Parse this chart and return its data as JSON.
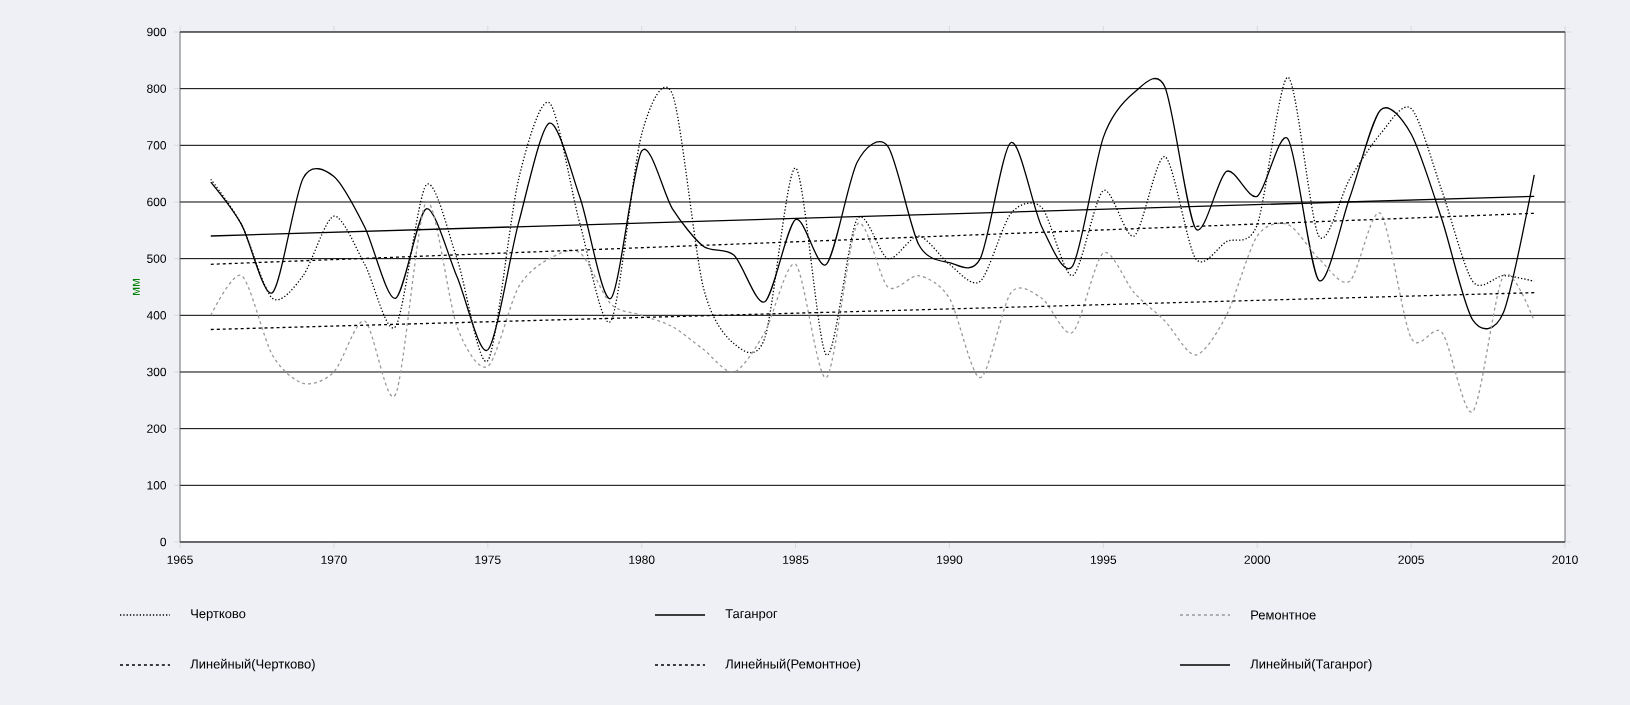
{
  "chart_data": {
    "type": "line",
    "ylabel": "мм",
    "xlim": [
      1965,
      2010
    ],
    "ylim": [
      0,
      900
    ],
    "xticks": [
      1965,
      1970,
      1975,
      1980,
      1985,
      1990,
      1995,
      2000,
      2005,
      2010
    ],
    "yticks": [
      0,
      100,
      200,
      300,
      400,
      500,
      600,
      700,
      800,
      900
    ],
    "grid": "y",
    "legend": "bottom",
    "x": [
      1966,
      1967,
      1968,
      1969,
      1970,
      1971,
      1972,
      1973,
      1974,
      1975,
      1976,
      1977,
      1978,
      1979,
      1980,
      1981,
      1982,
      1983,
      1984,
      1985,
      1986,
      1987,
      1988,
      1989,
      1990,
      1991,
      1992,
      1993,
      1994,
      1995,
      1996,
      1997,
      1998,
      1999,
      2000,
      2001,
      2002,
      2003,
      2004,
      2005,
      2006,
      2007,
      2008,
      2009
    ],
    "series": [
      {
        "name": "Чертково",
        "color": "#000000",
        "line_style": "dotted",
        "values": [
          640,
          560,
          430,
          470,
          575,
          490,
          380,
          630,
          500,
          320,
          640,
          775,
          560,
          390,
          720,
          790,
          450,
          350,
          360,
          660,
          330,
          570,
          500,
          540,
          490,
          460,
          580,
          590,
          470,
          620,
          540,
          680,
          500,
          530,
          560,
          820,
          540,
          640,
          720,
          765,
          620,
          460,
          470,
          460
        ]
      },
      {
        "name": "Таганрог",
        "color": "#000000",
        "line_style": "solid",
        "values": [
          635,
          560,
          440,
          642,
          645,
          556,
          430,
          588,
          468,
          339,
          563,
          739,
          607,
          430,
          690,
          588,
          522,
          506,
          424,
          569,
          490,
          670,
          698,
          525,
          493,
          500,
          705,
          556,
          487,
          714,
          793,
          803,
          553,
          654,
          610,
          711,
          462,
          607,
          762,
          720,
          569,
          392,
          405,
          648
        ]
      },
      {
        "name": "Ремонтное",
        "color": "#999999",
        "line_style": "dashed",
        "values": [
          400,
          470,
          330,
          280,
          300,
          390,
          260,
          600,
          380,
          310,
          450,
          500,
          510,
          420,
          400,
          380,
          340,
          300,
          370,
          490,
          290,
          560,
          450,
          470,
          430,
          290,
          440,
          430,
          370,
          510,
          440,
          390,
          330,
          400,
          540,
          560,
          500,
          460,
          580,
          360,
          370,
          230,
          470,
          390
        ]
      },
      {
        "name": "Линейный(Чертково)",
        "color": "#000000",
        "line_style": "dashed",
        "values": [
          490,
          null,
          null,
          null,
          null,
          null,
          null,
          null,
          null,
          null,
          null,
          null,
          null,
          null,
          null,
          null,
          null,
          null,
          null,
          null,
          null,
          null,
          null,
          null,
          null,
          null,
          null,
          null,
          null,
          null,
          null,
          null,
          null,
          null,
          null,
          null,
          null,
          null,
          null,
          null,
          null,
          null,
          null,
          580
        ]
      },
      {
        "name": "Линейный(Ремонтное)",
        "color": "#000000",
        "line_style": "dashed",
        "values": [
          375,
          null,
          null,
          null,
          null,
          null,
          null,
          null,
          null,
          null,
          null,
          null,
          null,
          null,
          null,
          null,
          null,
          null,
          null,
          null,
          null,
          null,
          null,
          null,
          null,
          null,
          null,
          null,
          null,
          null,
          null,
          null,
          null,
          null,
          null,
          null,
          null,
          null,
          null,
          null,
          null,
          null,
          null,
          440
        ]
      },
      {
        "name": "Линейный(Таганрог)",
        "color": "#000000",
        "line_style": "solid",
        "values": [
          540,
          null,
          null,
          null,
          null,
          null,
          null,
          null,
          null,
          null,
          null,
          null,
          null,
          null,
          null,
          null,
          null,
          null,
          null,
          null,
          null,
          null,
          null,
          null,
          null,
          null,
          null,
          null,
          null,
          null,
          null,
          null,
          null,
          null,
          null,
          null,
          null,
          null,
          null,
          null,
          null,
          null,
          null,
          610
        ]
      }
    ]
  }
}
